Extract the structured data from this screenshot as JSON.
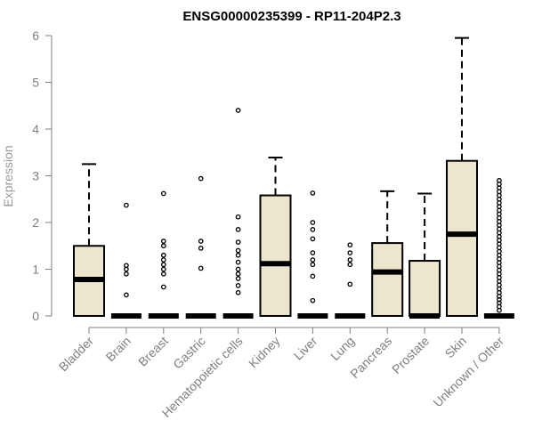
{
  "chart_data": {
    "type": "box",
    "title": "ENSG00000235399 - RP11-204P2.3",
    "xlabel": "",
    "ylabel": "Expression",
    "ylim": [
      0,
      6
    ],
    "yticks": [
      0,
      1,
      2,
      3,
      4,
      5,
      6
    ],
    "box_fill": "#ece6cf",
    "categories": [
      "Bladder",
      "Brain",
      "Breast",
      "Gastric",
      "Hematopoietic cells",
      "Kidney",
      "Liver",
      "Lung",
      "Pancreas",
      "Prostate",
      "Skin",
      "Unknown / Other"
    ],
    "boxes": [
      {
        "q1": 0.0,
        "median": 0.78,
        "q3": 1.5,
        "whisker_low": 0.0,
        "whisker_high": 3.25,
        "outliers": []
      },
      {
        "q1": 0.0,
        "median": 0.0,
        "q3": 0.0,
        "whisker_low": 0.0,
        "whisker_high": 0.0,
        "outliers": [
          0.45,
          0.9,
          1.0,
          1.08,
          2.37
        ]
      },
      {
        "q1": 0.0,
        "median": 0.0,
        "q3": 0.0,
        "whisker_low": 0.0,
        "whisker_high": 0.0,
        "outliers": [
          0.62,
          0.9,
          1.0,
          1.1,
          1.2,
          1.3,
          1.5,
          1.6,
          2.62
        ]
      },
      {
        "q1": 0.0,
        "median": 0.0,
        "q3": 0.0,
        "whisker_low": 0.0,
        "whisker_high": 0.0,
        "outliers": [
          1.02,
          1.45,
          1.6,
          2.94
        ]
      },
      {
        "q1": 0.0,
        "median": 0.0,
        "q3": 0.0,
        "whisker_low": 0.0,
        "whisker_high": 0.0,
        "outliers": [
          0.5,
          0.65,
          0.8,
          0.9,
          1.0,
          1.15,
          1.3,
          1.4,
          1.58,
          1.85,
          2.12,
          4.4
        ]
      },
      {
        "q1": 0.0,
        "median": 1.12,
        "q3": 2.58,
        "whisker_low": 0.0,
        "whisker_high": 3.39,
        "outliers": []
      },
      {
        "q1": 0.0,
        "median": 0.0,
        "q3": 0.0,
        "whisker_low": 0.0,
        "whisker_high": 0.0,
        "outliers": [
          0.33,
          0.85,
          1.1,
          1.2,
          1.35,
          1.65,
          1.85,
          2.0,
          2.63
        ]
      },
      {
        "q1": 0.0,
        "median": 0.0,
        "q3": 0.0,
        "whisker_low": 0.0,
        "whisker_high": 0.0,
        "outliers": [
          0.68,
          1.1,
          1.2,
          1.35,
          1.52
        ]
      },
      {
        "q1": 0.0,
        "median": 0.94,
        "q3": 1.56,
        "whisker_low": 0.0,
        "whisker_high": 2.67,
        "outliers": []
      },
      {
        "q1": 0.0,
        "median": 0.0,
        "q3": 1.18,
        "whisker_low": 0.0,
        "whisker_high": 2.62,
        "outliers": []
      },
      {
        "q1": 0.0,
        "median": 1.75,
        "q3": 3.32,
        "whisker_low": 0.0,
        "whisker_high": 5.95,
        "outliers": []
      },
      {
        "q1": 0.0,
        "median": 0.0,
        "q3": 0.0,
        "whisker_low": 0.0,
        "whisker_high": 0.0,
        "outliers": [
          0.12,
          0.2,
          0.28,
          0.35,
          0.42,
          0.5,
          0.58,
          0.66,
          0.74,
          0.82,
          0.9,
          0.98,
          1.06,
          1.14,
          1.22,
          1.3,
          1.38,
          1.46,
          1.54,
          1.62,
          1.7,
          1.78,
          1.86,
          1.94,
          2.02,
          2.1,
          2.18,
          2.26,
          2.34,
          2.42,
          2.5,
          2.58,
          2.66,
          2.74,
          2.82,
          2.9
        ]
      }
    ]
  }
}
